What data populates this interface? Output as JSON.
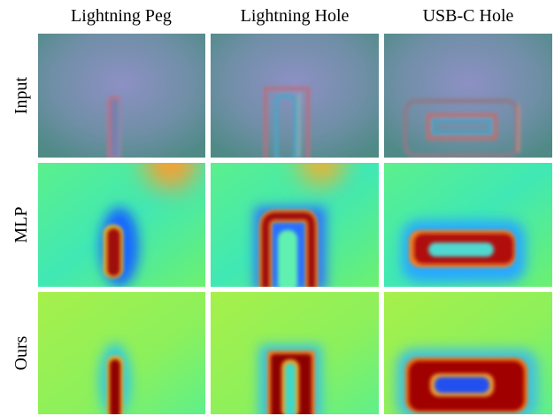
{
  "columns": [
    "Lightning Peg",
    "Lightning Hole",
    "USB-C Hole"
  ],
  "rows": [
    "Input",
    "MLP",
    "Ours"
  ]
}
